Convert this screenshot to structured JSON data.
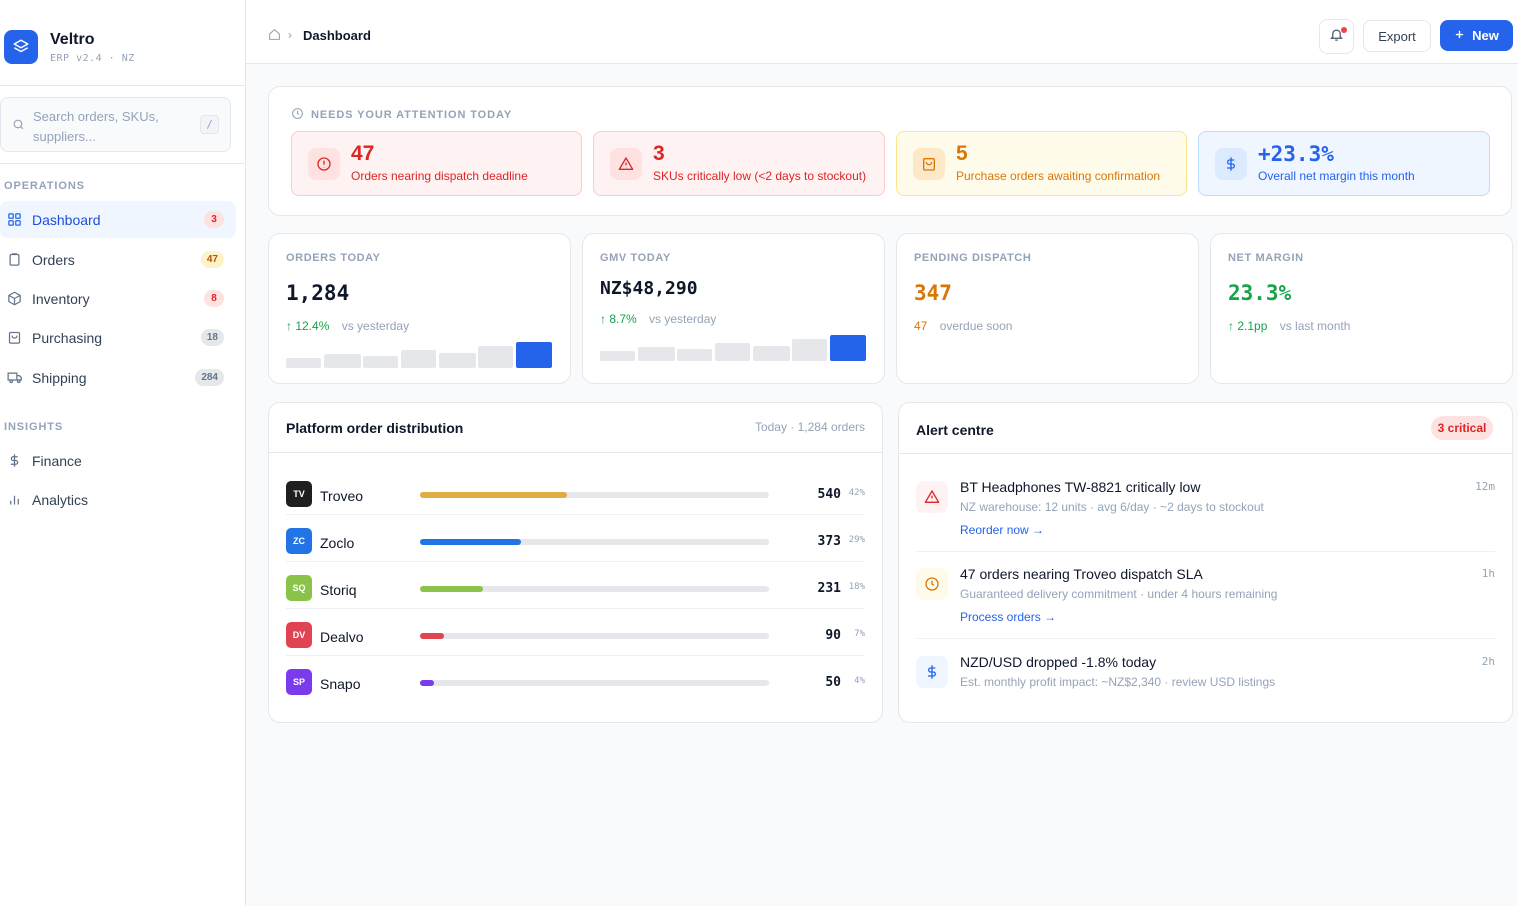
{
  "app": {
    "name": "Veltro",
    "version": "ERP v2.4 · NZ"
  },
  "search": {
    "placeholder": "Search orders, SKUs, suppliers...",
    "shortcut": "/"
  },
  "sidebar": {
    "operations_label": "OPERATIONS",
    "insights_label": "INSIGHTS",
    "items": [
      {
        "label": "Dashboard",
        "badge": "3",
        "icon": "grid-icon"
      },
      {
        "label": "Orders",
        "badge": "47",
        "icon": "clipboard-icon"
      },
      {
        "label": "Inventory",
        "badge": "8",
        "icon": "box-icon"
      },
      {
        "label": "Purchasing",
        "badge": "18",
        "icon": "bag-icon"
      },
      {
        "label": "Shipping",
        "badge": "284",
        "icon": "truck-icon"
      },
      {
        "label": "Finance",
        "icon": "dollar-icon"
      },
      {
        "label": "Analytics",
        "icon": "bar-chart-icon"
      }
    ]
  },
  "topbar": {
    "breadcrumb": "Dashboard",
    "export_label": "Export",
    "new_label": "New"
  },
  "attention": {
    "heading": "NEEDS YOUR ATTENTION TODAY",
    "items": [
      {
        "value": "47",
        "label": "Orders nearing dispatch deadline",
        "icon": "clock-alert-icon",
        "color": "#dc2626"
      },
      {
        "value": "3",
        "label": "SKUs critically low (<2 days to stockout)",
        "icon": "warning-icon",
        "color": "#dc2626"
      },
      {
        "value": "5",
        "label": "Purchase orders awaiting confirmation",
        "icon": "bag-icon",
        "color": "#d97706"
      },
      {
        "value": "+23.3%",
        "label": "Overall net margin this month",
        "icon": "dollar-icon",
        "color": "#2563eb"
      }
    ]
  },
  "kpis": [
    {
      "label": "ORDERS TODAY",
      "value": "1,284",
      "delta": "↑ 12.4%",
      "compare": "vs yesterday"
    },
    {
      "label": "GMV TODAY",
      "value": "NZ$48,290",
      "delta": "↑ 8.7%",
      "compare": "vs yesterday"
    },
    {
      "label": "PENDING DISPATCH",
      "value": "347",
      "delta": "47",
      "compare": "overdue soon"
    },
    {
      "label": "NET MARGIN",
      "value": "23.3%",
      "delta": "↑ 2.1pp",
      "compare": "vs last month"
    }
  ],
  "distribution": {
    "title": "Platform order distribution",
    "meta": "Today · 1,284 orders",
    "platforms": [
      {
        "code": "TV",
        "name": "Troveo",
        "count": "540",
        "pct": "42%",
        "share": 0.42,
        "color": "#e0ad45",
        "logo_bg": "#1f1f1f"
      },
      {
        "code": "ZC",
        "name": "Zoclo",
        "count": "373",
        "pct": "29%",
        "share": 0.29,
        "color": "#2173e6",
        "logo_bg": "#2173e6"
      },
      {
        "code": "SQ",
        "name": "Storiq",
        "count": "231",
        "pct": "18%",
        "share": 0.18,
        "color": "#8bc34a",
        "logo_bg": "#8bc34a"
      },
      {
        "code": "DV",
        "name": "Dealvo",
        "count": "90",
        "pct": "7%",
        "share": 0.07,
        "color": "#e04452",
        "logo_bg": "#e04452"
      },
      {
        "code": "SP",
        "name": "Snapo",
        "count": "50",
        "pct": "4%",
        "share": 0.04,
        "color": "#7c3aed",
        "logo_bg": "#7c3aed"
      }
    ]
  },
  "alerts": {
    "title": "Alert centre",
    "badge": "3 critical",
    "items": [
      {
        "title": "BT Headphones TW-8821 critically low",
        "desc": "NZ warehouse: 12 units · avg 6/day · ~2 days to stockout",
        "action": "Reorder now →",
        "time": "12m",
        "icon": "warning-icon"
      },
      {
        "title": "47 orders nearing Troveo dispatch SLA",
        "desc": "Guaranteed delivery commitment · under 4 hours remaining",
        "action": "Process orders →",
        "time": "1h",
        "icon": "clock-icon"
      },
      {
        "title": "NZD/USD dropped -1.8% today",
        "desc": "Est. monthly profit impact: ~NZ$2,340 · review USD listings",
        "time": "2h",
        "icon": "dollar-icon"
      }
    ]
  }
}
